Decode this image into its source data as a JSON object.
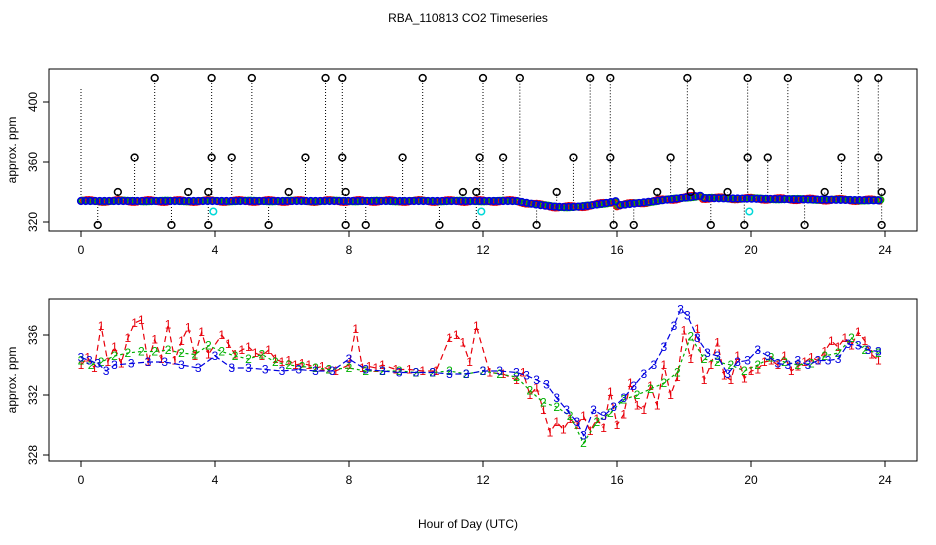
{
  "chart_data": [
    {
      "type": "scatter",
      "panel": "top",
      "title": "RBA_110813  CO2 Timeseries",
      "ylabel": "approx. ppm",
      "xlabel": "",
      "xlim": [
        0,
        24
      ],
      "ylim": [
        318,
        418
      ],
      "x_ticks": [
        "0",
        "4",
        "8",
        "12",
        "16",
        "20",
        "24"
      ],
      "y_ticks": [
        "320",
        "360",
        "400"
      ],
      "spike_up_hours": [
        2.2,
        3.9,
        5.1,
        7.3,
        7.8,
        10.2,
        12.0,
        13.1,
        15.2,
        15.8,
        18.1,
        19.9,
        21.1,
        23.2,
        23.8
      ],
      "spike_mid_hours": [
        1.6,
        3.9,
        4.5,
        6.7,
        7.8,
        9.6,
        11.9,
        12.6,
        14.7,
        15.8,
        17.6,
        19.9,
        20.5,
        22.7,
        23.8
      ],
      "spike_low_hours": [
        0.5,
        2.7,
        3.8,
        5.6,
        7.9,
        8.5,
        10.7,
        11.8,
        13.6,
        15.9,
        16.5,
        18.8,
        19.8,
        21.6,
        23.9
      ],
      "spike_small_hours": [
        1.1,
        3.2,
        3.8,
        6.2,
        7.9,
        11.4,
        11.8,
        14.2,
        17.2,
        18.2,
        19.3,
        22.2,
        23.9
      ],
      "series": [
        {
          "name": "1",
          "color": "#e8000b"
        },
        {
          "name": "2",
          "color": "#00b000"
        },
        {
          "name": "3",
          "color": "#0000e0"
        },
        {
          "name": "spikes",
          "color": "#000000"
        },
        {
          "name": "reference",
          "color": "#00d8d8"
        }
      ]
    },
    {
      "type": "line",
      "panel": "bottom",
      "ylabel": "approx. ppm",
      "xlabel": "Hour of Day (UTC)",
      "xlim": [
        0,
        24
      ],
      "ylim": [
        328,
        338
      ],
      "x_ticks": [
        "0",
        "4",
        "8",
        "12",
        "16",
        "20",
        "24"
      ],
      "y_ticks": [
        "328",
        "332",
        "336"
      ],
      "series": [
        {
          "name": "1",
          "color": "#e8000b",
          "x": [
            0.0,
            0.2,
            0.4,
            0.6,
            0.8,
            1.0,
            1.2,
            1.4,
            1.6,
            1.8,
            2.0,
            2.2,
            2.4,
            2.6,
            2.8,
            3.0,
            3.2,
            3.4,
            3.6,
            3.8,
            4.2,
            4.4,
            4.6,
            4.8,
            5.0,
            5.2,
            5.4,
            5.6,
            5.8,
            6.0,
            6.2,
            6.4,
            6.6,
            6.8,
            7.0,
            7.2,
            7.4,
            7.6,
            8.0,
            8.2,
            8.4,
            8.6,
            8.8,
            9.0,
            9.4,
            9.8,
            10.2,
            10.6,
            11.0,
            11.2,
            11.4,
            11.6,
            11.8,
            12.2,
            12.6,
            13.0,
            13.2,
            13.4,
            13.6,
            13.8,
            14.0,
            14.2,
            14.4,
            14.6,
            14.8,
            15.0,
            15.2,
            15.4,
            15.6,
            15.8,
            16.0,
            16.2,
            16.4,
            16.6,
            16.8,
            17.0,
            17.2,
            17.4,
            17.6,
            17.8,
            18.0,
            18.2,
            18.4,
            18.6,
            18.8,
            19.0,
            19.2,
            19.4,
            19.6,
            19.8,
            20.0,
            20.2,
            20.4,
            20.6,
            20.8,
            21.0,
            21.2,
            21.4,
            21.6,
            21.8,
            22.0,
            22.2,
            22.4,
            22.6,
            22.8,
            23.0,
            23.2,
            23.4,
            23.6,
            23.8
          ],
          "values": [
            334.0,
            334.5,
            333.8,
            336.6,
            334.2,
            335.2,
            334.1,
            335.8,
            336.8,
            337.0,
            334.2,
            335.7,
            334.4,
            336.7,
            334.3,
            335.6,
            336.5,
            334.6,
            336.2,
            334.7,
            336.0,
            335.4,
            334.7,
            335.0,
            335.2,
            334.8,
            334.6,
            335.0,
            334.4,
            334.2,
            334.3,
            334.0,
            334.1,
            334.0,
            333.8,
            333.9,
            333.7,
            333.6,
            334.0,
            336.4,
            333.8,
            333.9,
            333.8,
            334.0,
            333.7,
            333.7,
            333.6,
            333.6,
            335.8,
            336.0,
            335.5,
            334.2,
            336.6,
            333.5,
            333.4,
            333.0,
            333.5,
            332.0,
            332.5,
            331.0,
            329.5,
            330.2,
            329.7,
            330.4,
            330.0,
            330.6,
            329.6,
            330.4,
            329.8,
            332.2,
            330.0,
            330.7,
            332.8,
            331.3,
            331.0,
            332.6,
            331.3,
            334.0,
            332.0,
            333.2,
            336.3,
            334.4,
            336.4,
            333.0,
            334.0,
            335.5,
            333.3,
            333.0,
            334.6,
            333.1,
            333.6,
            333.7,
            334.2,
            334.3,
            334.0,
            334.6,
            333.6,
            333.9,
            334.2,
            334.5,
            334.3,
            334.9,
            335.6,
            335.2,
            335.8,
            335.3,
            336.2,
            335.6,
            334.7,
            334.3
          ]
        },
        {
          "name": "2",
          "color": "#00b000",
          "x": [
            0.0,
            0.3,
            0.6,
            1.0,
            1.4,
            1.8,
            2.2,
            2.6,
            3.0,
            3.4,
            3.8,
            4.2,
            4.6,
            5.0,
            5.4,
            5.8,
            6.2,
            6.6,
            7.0,
            7.4,
            8.0,
            8.5,
            9.0,
            9.5,
            10.0,
            10.5,
            11.0,
            11.5,
            12.0,
            12.5,
            13.0,
            13.4,
            13.8,
            14.2,
            14.6,
            15.0,
            15.4,
            15.8,
            16.2,
            16.6,
            17.0,
            17.4,
            17.8,
            18.2,
            18.6,
            19.0,
            19.4,
            19.8,
            20.2,
            20.6,
            21.0,
            21.4,
            21.8,
            22.2,
            22.6,
            23.0,
            23.4,
            23.8
          ],
          "values": [
            334.3,
            334.0,
            334.2,
            334.6,
            334.8,
            334.9,
            334.9,
            335.0,
            334.8,
            334.7,
            335.3,
            334.9,
            334.6,
            334.4,
            334.7,
            334.2,
            334.0,
            333.9,
            333.8,
            333.7,
            333.8,
            333.6,
            333.6,
            333.6,
            333.5,
            333.5,
            333.6,
            333.4,
            333.6,
            333.4,
            333.2,
            332.3,
            331.5,
            331.2,
            330.6,
            328.8,
            330.2,
            330.8,
            331.7,
            332.0,
            332.4,
            332.8,
            333.5,
            335.9,
            334.4,
            334.2,
            334.0,
            333.6,
            334.0,
            334.5,
            334.2,
            334.0,
            334.1,
            334.6,
            334.8,
            335.8,
            335.0,
            334.8
          ]
        },
        {
          "name": "3",
          "color": "#0000e0",
          "x": [
            0.0,
            0.25,
            0.5,
            0.75,
            1.0,
            1.5,
            2.0,
            2.5,
            3.0,
            3.5,
            4.0,
            4.5,
            5.0,
            5.5,
            6.0,
            6.5,
            7.0,
            7.5,
            8.0,
            8.5,
            9.0,
            9.5,
            10.0,
            10.5,
            11.0,
            11.5,
            12.0,
            12.5,
            13.0,
            13.3,
            13.6,
            13.9,
            14.2,
            14.5,
            14.8,
            15.0,
            15.3,
            15.6,
            15.9,
            16.2,
            16.5,
            16.8,
            17.1,
            17.4,
            17.7,
            17.9,
            18.1,
            18.4,
            18.7,
            19.0,
            19.3,
            19.6,
            19.9,
            20.2,
            20.5,
            20.8,
            21.1,
            21.4,
            21.7,
            22.0,
            22.3,
            22.6,
            22.9,
            23.2,
            23.5,
            23.8
          ],
          "values": [
            334.5,
            334.3,
            334.1,
            333.6,
            334.0,
            334.1,
            334.2,
            334.2,
            334.0,
            333.8,
            334.6,
            333.8,
            333.8,
            333.7,
            333.6,
            333.7,
            333.6,
            333.6,
            334.4,
            333.7,
            333.6,
            333.5,
            333.5,
            333.5,
            333.4,
            333.4,
            333.6,
            333.6,
            333.5,
            333.3,
            333.0,
            332.7,
            331.8,
            331.0,
            330.2,
            329.3,
            331.0,
            330.6,
            331.2,
            331.8,
            332.6,
            333.4,
            334.0,
            335.2,
            336.6,
            337.7,
            337.3,
            335.8,
            334.8,
            334.6,
            333.4,
            334.2,
            334.3,
            335.0,
            334.6,
            334.1,
            334.0,
            334.3,
            334.0,
            334.3,
            334.3,
            334.4,
            335.4,
            335.3,
            335.0,
            334.9
          ]
        }
      ]
    }
  ]
}
